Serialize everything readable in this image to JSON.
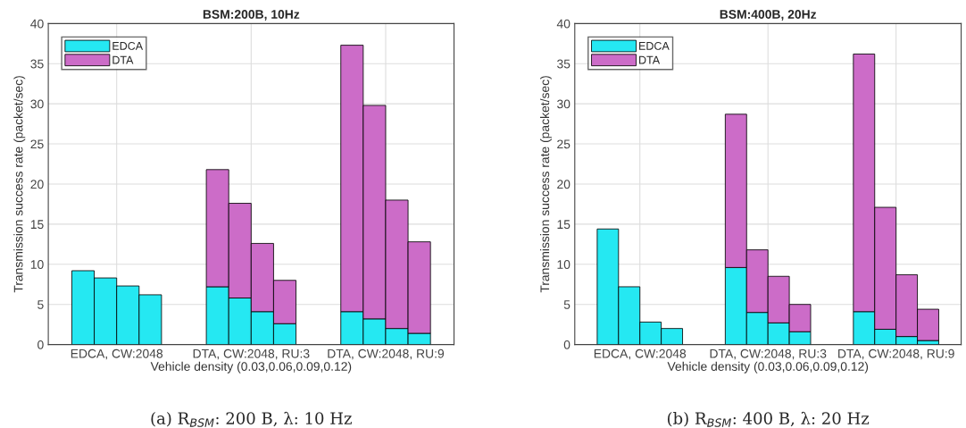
{
  "chart_data": [
    {
      "type": "bar",
      "stacked": true,
      "title": "BSM:200B, 10Hz",
      "xlabel": "Vehicle density (0.03,0.06,0.09,0.12)",
      "ylabel": "Transmission success rate (packet/sec)",
      "categories": [
        null,
        "EDCA, CW:2048",
        null,
        null,
        null,
        null,
        null,
        "DTA, CW:2048, RU:3",
        null,
        null,
        null,
        null,
        null,
        "DTA, CW:2048, RU:9",
        null,
        null
      ],
      "series": [
        {
          "name": "EDCA",
          "color": "#25e8f2",
          "values": [
            9.2,
            8.3,
            7.3,
            6.2,
            null,
            null,
            7.2,
            5.8,
            4.1,
            2.6,
            null,
            null,
            4.1,
            3.2,
            2.0,
            1.4
          ]
        },
        {
          "name": "DTA",
          "color": "#cc6cc8",
          "values": [
            null,
            null,
            null,
            null,
            null,
            null,
            14.6,
            11.8,
            8.5,
            5.4,
            null,
            null,
            33.2,
            26.6,
            16.0,
            11.4
          ]
        }
      ],
      "ylim": [
        0,
        40
      ],
      "yticks": [
        0,
        5,
        10,
        15,
        20,
        25,
        30,
        35,
        40
      ],
      "grid": true,
      "legend": "top left",
      "annotations": [
        "(a) R$_{BSM}$: 200 B, λ: 10 Hz"
      ]
    },
    {
      "type": "bar",
      "stacked": true,
      "title": "BSM:400B, 20Hz",
      "xlabel": "Vehicle density (0.03,0.06,0.09,0.12)",
      "ylabel": "Transmission success rate (packet/sec)",
      "categories": [
        null,
        "EDCA, CW:2048",
        null,
        null,
        null,
        null,
        null,
        "DTA, CW:2048, RU:3",
        null,
        null,
        null,
        null,
        null,
        "DTA, CW:2048, RU:9",
        null,
        null
      ],
      "series": [
        {
          "name": "EDCA",
          "color": "#25e8f2",
          "values": [
            14.4,
            7.2,
            2.8,
            2.0,
            null,
            null,
            9.6,
            4.0,
            2.7,
            1.6,
            null,
            null,
            4.1,
            1.9,
            1.0,
            0.5
          ]
        },
        {
          "name": "DTA",
          "color": "#cc6cc8",
          "values": [
            null,
            null,
            null,
            null,
            null,
            null,
            19.1,
            7.8,
            5.8,
            3.4,
            null,
            null,
            32.1,
            15.2,
            7.7,
            3.9
          ]
        }
      ],
      "ylim": [
        0,
        40
      ],
      "yticks": [
        0,
        5,
        10,
        15,
        20,
        25,
        30,
        35,
        40
      ],
      "grid": true,
      "legend": "top left",
      "annotations": [
        "(b) R$_{BSM}$: 400 B, λ: 20 Hz"
      ]
    }
  ]
}
